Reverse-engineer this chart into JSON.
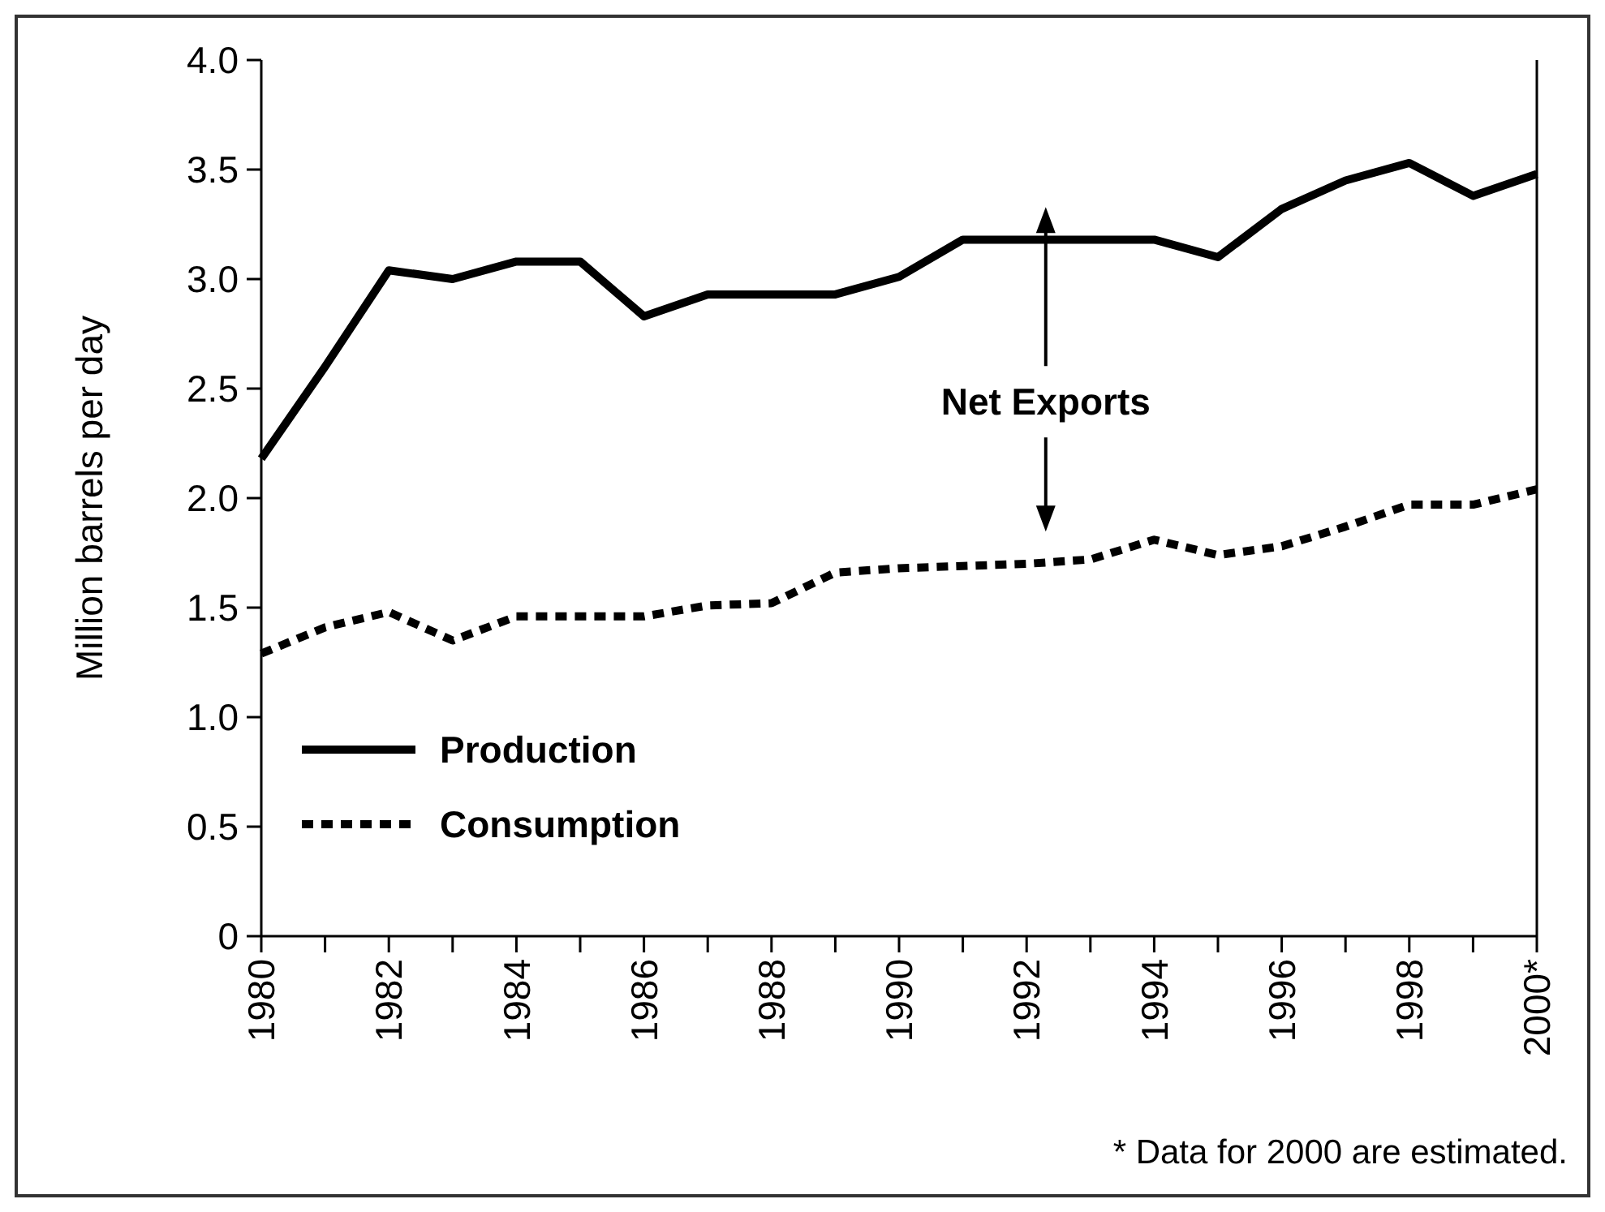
{
  "chart_data": {
    "type": "line",
    "ylabel": "Million barrels per day",
    "x": [
      1980,
      1981,
      1982,
      1983,
      1984,
      1985,
      1986,
      1987,
      1988,
      1989,
      1990,
      1991,
      1992,
      1993,
      1994,
      1995,
      1996,
      1997,
      1998,
      1999,
      2000
    ],
    "series": [
      {
        "name": "Production",
        "color": "#000000",
        "line_style": "solid",
        "values": [
          2.18,
          2.6,
          3.04,
          3.0,
          3.08,
          3.08,
          2.83,
          2.93,
          2.93,
          2.93,
          3.01,
          3.18,
          3.18,
          3.18,
          3.18,
          3.1,
          3.32,
          3.45,
          3.53,
          3.38,
          3.48
        ]
      },
      {
        "name": "Consumption",
        "color": "#000000",
        "line_style": "dotted",
        "values": [
          1.29,
          1.41,
          1.48,
          1.35,
          1.46,
          1.46,
          1.46,
          1.51,
          1.52,
          1.66,
          1.68,
          1.69,
          1.7,
          1.72,
          1.81,
          1.74,
          1.78,
          1.87,
          1.97,
          1.97,
          2.04
        ]
      }
    ],
    "xlim": [
      1980,
      2000
    ],
    "xticks": [
      1980,
      {
        "value": 1981,
        "label": null
      },
      1982,
      {
        "value": 1983,
        "label": null
      },
      1984,
      {
        "value": 1985,
        "label": null
      },
      1986,
      {
        "value": 1987,
        "label": null
      },
      1988,
      {
        "value": 1989,
        "label": null
      },
      1990,
      {
        "value": 1991,
        "label": null
      },
      1992,
      {
        "value": 1993,
        "label": null
      },
      1994,
      {
        "value": 1995,
        "label": null
      },
      1996,
      {
        "value": 1997,
        "label": null
      },
      1998,
      {
        "value": 1999,
        "label": null
      },
      {
        "value": 2000,
        "label": "2000*"
      }
    ],
    "ylim": [
      0,
      4
    ],
    "yticks": [
      0,
      0.5,
      {
        "value": 1,
        "label": "1.0"
      },
      1.5,
      {
        "value": 2,
        "label": "2.0"
      },
      2.5,
      {
        "value": 3,
        "label": "3.0"
      },
      3.5,
      {
        "value": 4,
        "label": "4.0"
      }
    ],
    "grid": false,
    "legend": "bottom left",
    "annotations": [
      "Net Exports",
      "* Data for 2000 are estimated."
    ]
  }
}
